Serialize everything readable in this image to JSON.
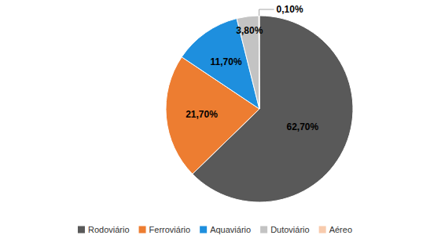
{
  "chart_data": {
    "type": "pie",
    "categories": [
      "Rodoviário",
      "Ferroviário",
      "Aquaviário",
      "Dutoviário",
      "Aéreo"
    ],
    "values": [
      62.7,
      21.7,
      11.7,
      3.8,
      0.1
    ],
    "value_labels": [
      "62,70%",
      "21,70%",
      "11,70%",
      "3,80%",
      "0,10%"
    ],
    "colors": [
      "#595959",
      "#ed7d31",
      "#1e8fde",
      "#c3c3c3",
      "#f8cbad"
    ],
    "data_labels": true,
    "legend": "bottom"
  }
}
